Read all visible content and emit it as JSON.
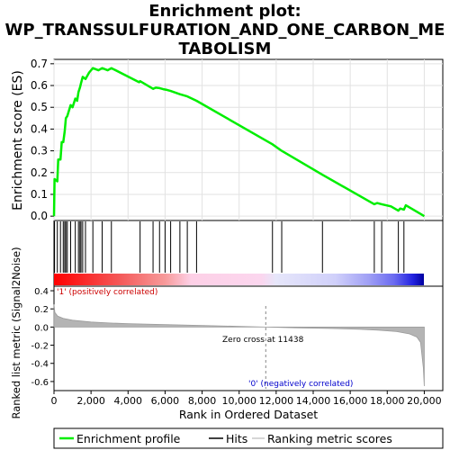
{
  "title": {
    "line1": "Enrichment plot:",
    "line2": "WP_TRANSSULFURATION_AND_ONE_CARBON_ME",
    "line3": "TABOLISM"
  },
  "chart_data": [
    {
      "type": "line",
      "name": "enrichment-score-panel",
      "ylabel": "Enrichment score (ES)",
      "ylim": [
        -0.02,
        0.72
      ],
      "yticks": [
        "0.0",
        "0.1",
        "0.2",
        "0.3",
        "0.4",
        "0.5",
        "0.6",
        "0.7"
      ],
      "xlim": [
        0,
        21000
      ],
      "grid": true,
      "series": [
        {
          "name": "Enrichment profile",
          "color": "#00ee00",
          "x": [
            0,
            30,
            180,
            230,
            350,
            420,
            500,
            580,
            640,
            720,
            900,
            1000,
            1150,
            1250,
            1320,
            1400,
            1460,
            1550,
            1700,
            1900,
            2100,
            2400,
            2600,
            2900,
            3100,
            4600,
            4650,
            5350,
            5500,
            5700,
            5900,
            6100,
            6300,
            6800,
            7200,
            7700,
            11800,
            12300,
            14500,
            17300,
            17450,
            17700,
            18200,
            18600,
            18700,
            18900,
            19000,
            19800,
            20000
          ],
          "y": [
            0.0,
            0.17,
            0.16,
            0.26,
            0.26,
            0.34,
            0.34,
            0.39,
            0.45,
            0.46,
            0.51,
            0.5,
            0.54,
            0.53,
            0.57,
            0.59,
            0.61,
            0.64,
            0.63,
            0.66,
            0.68,
            0.67,
            0.68,
            0.67,
            0.68,
            0.615,
            0.62,
            0.585,
            0.59,
            0.588,
            0.583,
            0.58,
            0.575,
            0.56,
            0.55,
            0.53,
            0.33,
            0.3,
            0.19,
            0.055,
            0.06,
            0.055,
            0.045,
            0.025,
            0.035,
            0.03,
            0.05,
            0.01,
            0.0
          ]
        }
      ]
    },
    {
      "type": "scatter",
      "name": "hits-panel",
      "series": [
        {
          "name": "Hits",
          "x": [
            30,
            180,
            350,
            500,
            580,
            640,
            720,
            900,
            1150,
            1320,
            1400,
            1460,
            1550,
            1700,
            2100,
            2600,
            3100,
            4650,
            5350,
            5700,
            6000,
            6300,
            6800,
            7200,
            7700,
            11800,
            12300,
            14500,
            17300,
            17700,
            18600,
            18900
          ]
        }
      ],
      "gradient_labels": {
        "positive": "'1' (positively correlated)",
        "negative": "'0' (negatively correlated)"
      }
    },
    {
      "type": "area",
      "name": "ranked-list-panel",
      "ylabel": "Ranked list metric (Signal2Noise)",
      "xlabel": "Rank in Ordered Dataset",
      "ylim": [
        -0.7,
        0.45
      ],
      "yticks": [
        "0.4",
        "0.2",
        "0.0",
        "-0.2",
        "-0.4",
        "-0.6"
      ],
      "xticks": [
        "0",
        "2,000",
        "4,000",
        "6,000",
        "8,000",
        "10,000",
        "12,000",
        "14,000",
        "16,000",
        "18,000",
        "20,000"
      ],
      "xlim": [
        0,
        21000
      ],
      "zero_cross_label": "Zero cross at 11438",
      "zero_cross": 11438,
      "series": [
        {
          "name": "Ranking metric scores",
          "color": "#b4b4b4",
          "x": [
            0,
            50,
            200,
            500,
            1000,
            2000,
            3000,
            4000,
            6000,
            8000,
            10000,
            11438,
            13000,
            15000,
            16500,
            17500,
            18500,
            19200,
            19600,
            19800,
            19950,
            20000
          ],
          "y": [
            0.25,
            0.16,
            0.12,
            0.095,
            0.075,
            0.055,
            0.045,
            0.038,
            0.028,
            0.018,
            0.008,
            0.0,
            -0.008,
            -0.016,
            -0.025,
            -0.035,
            -0.05,
            -0.075,
            -0.11,
            -0.17,
            -0.45,
            -0.65
          ]
        }
      ]
    }
  ],
  "legend": {
    "items": [
      {
        "label": "Enrichment profile",
        "color": "#00ee00",
        "style": "line"
      },
      {
        "label": "Hits",
        "color": "#000000",
        "style": "line"
      },
      {
        "label": "Ranking metric scores",
        "color": "#c8c8c8",
        "style": "line"
      }
    ]
  }
}
